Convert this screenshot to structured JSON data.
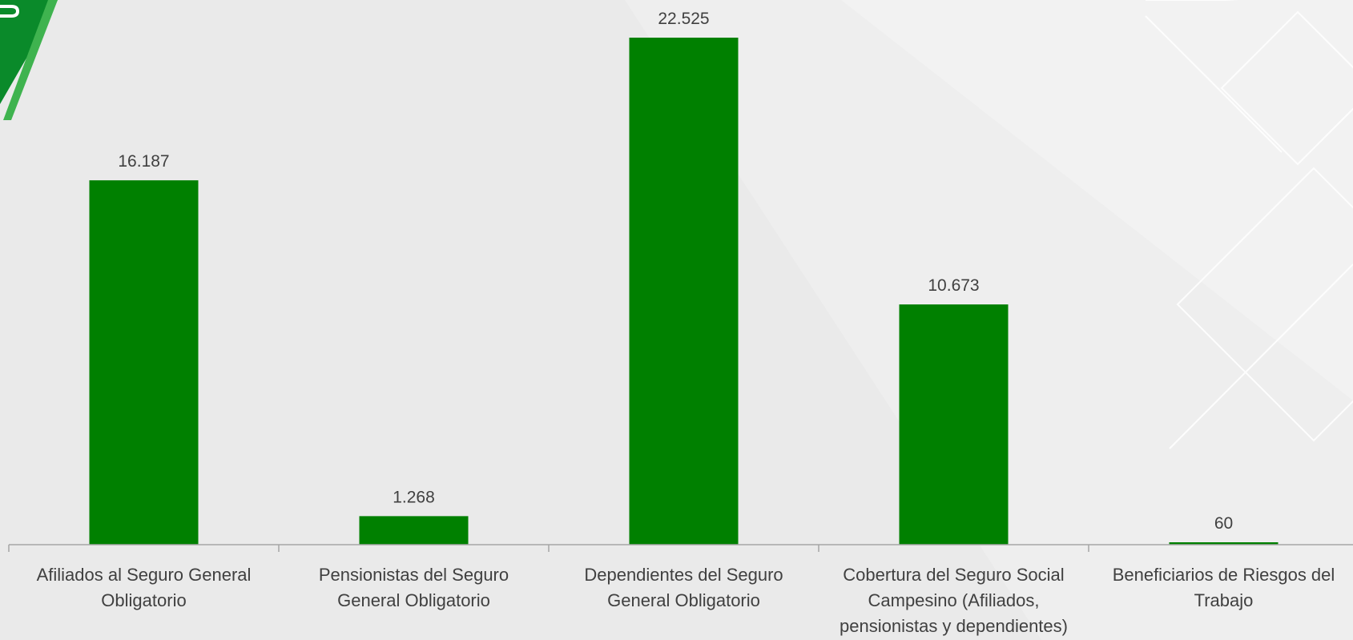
{
  "colors": {
    "bar": "#008000",
    "axis": "#a6a6a6",
    "text": "#404040",
    "brand": "#0a8a2a"
  },
  "chart_data": {
    "type": "bar",
    "categories": [
      [
        "Afiliados al Seguro General",
        "Obligatorio"
      ],
      [
        "Pensionistas del Seguro",
        "General Obligatorio"
      ],
      [
        "Dependientes del Seguro",
        "General Obligatorio"
      ],
      [
        "Cobertura del Seguro Social",
        "Campesino (Afiliados,",
        "pensionistas y dependientes)"
      ],
      [
        "Beneficiarios de Riesgos del",
        "Trabajo"
      ]
    ],
    "values": [
      16187,
      1268,
      22525,
      10673,
      60
    ],
    "value_labels": [
      "16.187",
      "1.268",
      "22.525",
      "10.673",
      "60"
    ],
    "ylim": [
      0,
      22525
    ],
    "grid": false,
    "legend": "none"
  }
}
